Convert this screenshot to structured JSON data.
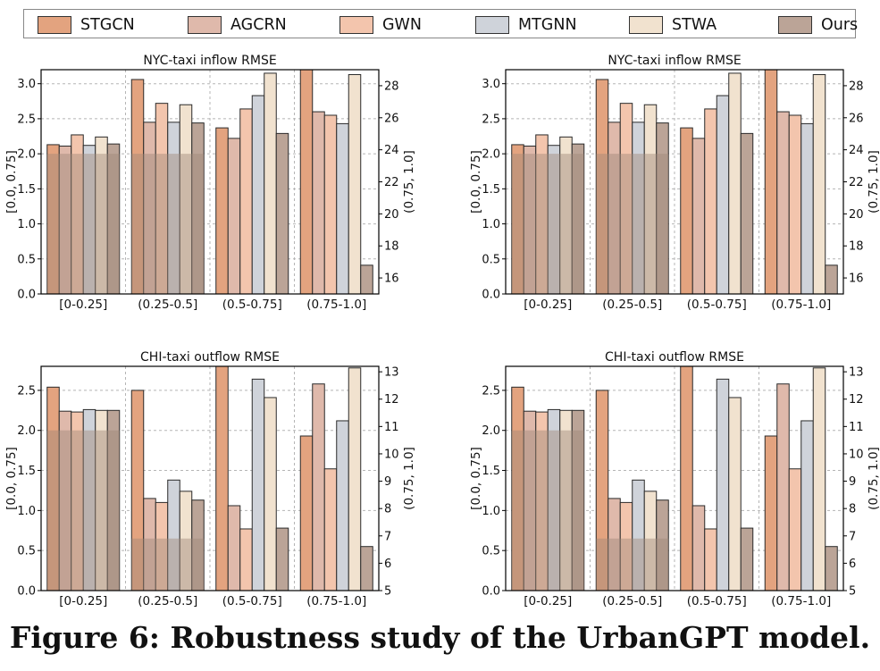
{
  "legend": [
    "STGCN",
    "AGCRN",
    "GWN",
    "MTGNN",
    "STWA",
    "Ours"
  ],
  "colors": [
    "#e3a37f",
    "#dfb9ab",
    "#f3c5ad",
    "#cfd3da",
    "#f1e2cf",
    "#bba497"
  ],
  "caption": "Figure 6: Robustness study of the UrbanGPT model.",
  "chart_data": [
    {
      "type": "bar",
      "title": "NYC-taxi inflow RMSE",
      "categories": [
        "[0-0.25]",
        "(0.25-0.5]",
        "(0.5-0.75]",
        "(0.75-1.0]"
      ],
      "ylabel": "[0.0, 0.75]",
      "y2label": "(0.75, 1.0]",
      "ylim": [
        0,
        3.2
      ],
      "y2lim": [
        15,
        29
      ],
      "yticks": [
        "0.0",
        "0.5",
        "1.0",
        "1.5",
        "2.0",
        "2.5",
        "3.0"
      ],
      "y2ticks": [
        "16",
        "18",
        "20",
        "22",
        "24",
        "26",
        "28"
      ],
      "series": [
        {
          "name": "STGCN",
          "values": [
            2.13,
            3.06,
            2.37,
            3.2
          ]
        },
        {
          "name": "AGCRN",
          "values": [
            2.11,
            2.45,
            2.22,
            2.6
          ]
        },
        {
          "name": "GWN",
          "values": [
            2.27,
            2.72,
            2.64,
            2.55
          ]
        },
        {
          "name": "MTGNN",
          "values": [
            2.12,
            2.45,
            2.83,
            2.43
          ]
        },
        {
          "name": "STWA",
          "values": [
            2.24,
            2.7,
            3.15,
            3.13
          ]
        },
        {
          "name": "Ours",
          "values": [
            2.14,
            2.44,
            2.29,
            0.41
          ]
        }
      ],
      "overlay": [
        {
          "category": "[0-0.25]",
          "value": 2.0
        },
        {
          "category": "(0.25-0.5]",
          "value": 2.0
        }
      ],
      "grid": true
    },
    {
      "type": "bar",
      "title": "NYC-taxi inflow RMSE",
      "categories": [
        "[0-0.25]",
        "(0.25-0.5]",
        "(0.5-0.75]",
        "(0.75-1.0]"
      ],
      "ylabel": "[0.0, 0.75]",
      "y2label": "(0.75, 1.0]",
      "ylim": [
        0,
        3.2
      ],
      "y2lim": [
        15,
        29
      ],
      "yticks": [
        "0.0",
        "0.5",
        "1.0",
        "1.5",
        "2.0",
        "2.5",
        "3.0"
      ],
      "y2ticks": [
        "16",
        "18",
        "20",
        "22",
        "24",
        "26",
        "28"
      ],
      "series": [
        {
          "name": "STGCN",
          "values": [
            2.13,
            3.06,
            2.37,
            3.2
          ]
        },
        {
          "name": "AGCRN",
          "values": [
            2.11,
            2.45,
            2.22,
            2.6
          ]
        },
        {
          "name": "GWN",
          "values": [
            2.27,
            2.72,
            2.64,
            2.55
          ]
        },
        {
          "name": "MTGNN",
          "values": [
            2.12,
            2.45,
            2.83,
            2.43
          ]
        },
        {
          "name": "STWA",
          "values": [
            2.24,
            2.7,
            3.15,
            3.13
          ]
        },
        {
          "name": "Ours",
          "values": [
            2.14,
            2.44,
            2.29,
            0.41
          ]
        }
      ],
      "overlay": [
        {
          "category": "[0-0.25]",
          "value": 2.0
        },
        {
          "category": "(0.25-0.5]",
          "value": 2.0
        }
      ],
      "grid": true
    },
    {
      "type": "bar",
      "title": "CHI-taxi outflow RMSE",
      "categories": [
        "[0-0.25]",
        "(0.25-0.5]",
        "(0.5-0.75]",
        "(0.75-1.0]"
      ],
      "ylabel": "[0.0, 0.75]",
      "y2label": "(0.75, 1.0]",
      "ylim": [
        0,
        2.8
      ],
      "y2lim": [
        5,
        13.2
      ],
      "yticks": [
        "0.0",
        "0.5",
        "1.0",
        "1.5",
        "2.0",
        "2.5"
      ],
      "y2ticks": [
        "5",
        "6",
        "7",
        "8",
        "9",
        "10",
        "11",
        "12",
        "13"
      ],
      "series": [
        {
          "name": "STGCN",
          "values": [
            2.54,
            2.5,
            2.8,
            1.93
          ]
        },
        {
          "name": "AGCRN",
          "values": [
            2.24,
            1.15,
            1.06,
            2.58
          ]
        },
        {
          "name": "GWN",
          "values": [
            2.23,
            1.1,
            0.77,
            1.52
          ]
        },
        {
          "name": "MTGNN",
          "values": [
            2.26,
            1.38,
            2.64,
            2.12
          ]
        },
        {
          "name": "STWA",
          "values": [
            2.25,
            1.24,
            2.41,
            2.78
          ]
        },
        {
          "name": "Ours",
          "values": [
            2.25,
            1.13,
            0.78,
            0.55
          ]
        }
      ],
      "overlay": [
        {
          "category": "[0-0.25]",
          "value": 2.0
        },
        {
          "category": "(0.25-0.5]",
          "value": 0.65
        }
      ],
      "grid": true
    },
    {
      "type": "bar",
      "title": "CHI-taxi outflow RMSE",
      "categories": [
        "[0-0.25]",
        "(0.25-0.5]",
        "(0.5-0.75]",
        "(0.75-1.0]"
      ],
      "ylabel": "[0.0, 0.75]",
      "y2label": "(0.75, 1.0]",
      "ylim": [
        0,
        2.8
      ],
      "y2lim": [
        5,
        13.2
      ],
      "yticks": [
        "0.0",
        "0.5",
        "1.0",
        "1.5",
        "2.0",
        "2.5"
      ],
      "y2ticks": [
        "5",
        "6",
        "7",
        "8",
        "9",
        "10",
        "11",
        "12",
        "13"
      ],
      "series": [
        {
          "name": "STGCN",
          "values": [
            2.54,
            2.5,
            2.8,
            1.93
          ]
        },
        {
          "name": "AGCRN",
          "values": [
            2.24,
            1.15,
            1.06,
            2.58
          ]
        },
        {
          "name": "GWN",
          "values": [
            2.23,
            1.1,
            0.77,
            1.52
          ]
        },
        {
          "name": "MTGNN",
          "values": [
            2.26,
            1.38,
            2.64,
            2.12
          ]
        },
        {
          "name": "STWA",
          "values": [
            2.25,
            1.24,
            2.41,
            2.78
          ]
        },
        {
          "name": "Ours",
          "values": [
            2.25,
            1.13,
            0.78,
            0.55
          ]
        }
      ],
      "overlay": [
        {
          "category": "[0-0.25]",
          "value": 2.0
        },
        {
          "category": "(0.25-0.5]",
          "value": 0.65
        }
      ],
      "grid": true
    }
  ]
}
